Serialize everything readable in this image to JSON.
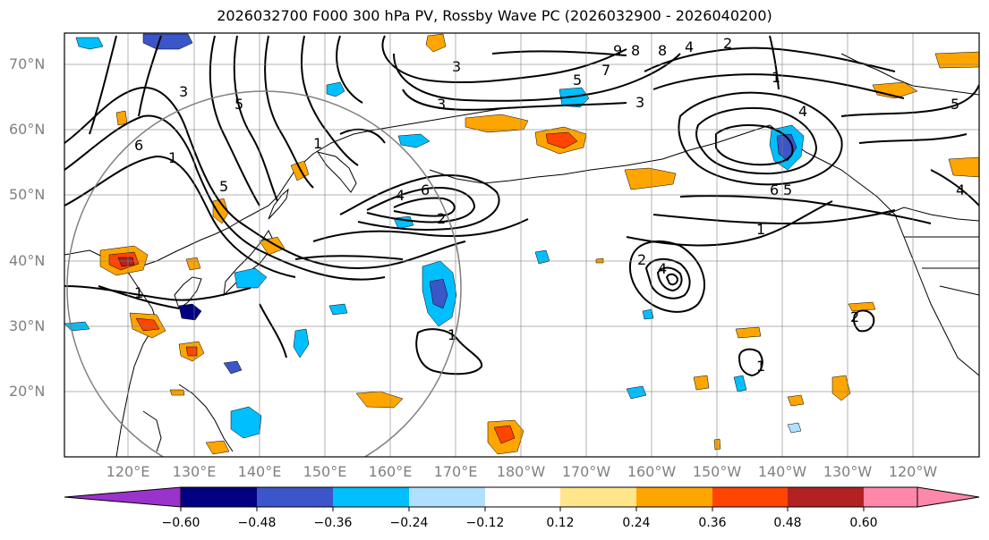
{
  "title": "2026032700 F000 300 hPa PV, Rossby Wave PC (2026032900 - 2026040200)",
  "latitude_labels": [
    "70°N",
    "60°N",
    "50°N",
    "40°N",
    "30°N",
    "20°N"
  ],
  "longitude_labels": [
    "120°E",
    "130°E",
    "140°E",
    "150°E",
    "160°E",
    "170°E",
    "180°W",
    "170°W",
    "160°W",
    "150°W",
    "140°W",
    "130°W",
    "120°W"
  ],
  "colorbar": {
    "ticks": [
      "−0.60",
      "−0.48",
      "−0.36",
      "−0.24",
      "−0.12",
      "0.12",
      "0.24",
      "0.36",
      "0.48",
      "0.60"
    ],
    "colors": [
      "#9933cc",
      "#000080",
      "#3a56c8",
      "#00bfff",
      "#b0e0ff",
      "#ffffff",
      "#ffe68a",
      "#ffa500",
      "#ff4500",
      "#b22222",
      "#ff88aa"
    ]
  },
  "contour_labels": [
    "1",
    "2",
    "3",
    "4",
    "5",
    "6",
    "7",
    "8",
    "9"
  ],
  "shading_colors": {
    "neg_light": "#b0e0ff",
    "neg_mid": "#00bfff",
    "neg_strong": "#3a56c8",
    "neg_max": "#000080",
    "pos_light": "#ffe68a",
    "pos_mid": "#ffa500",
    "pos_strong": "#ff4500",
    "pos_max": "#b22222"
  }
}
